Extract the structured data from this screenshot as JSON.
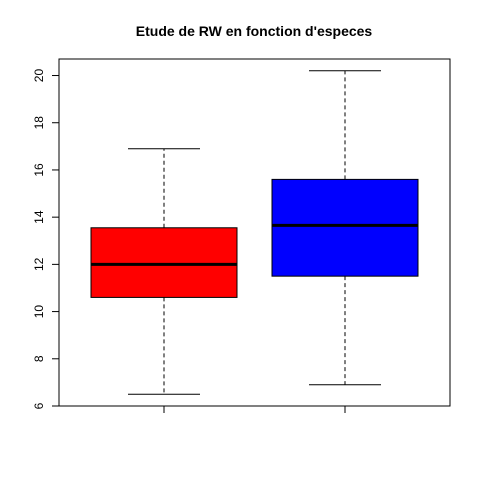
{
  "chart_data": {
    "type": "box",
    "title": "Etude de RW en fonction d'especes",
    "xlabel": "",
    "ylabel": "",
    "ylim": [
      6,
      20.7
    ],
    "y_ticks": [
      6,
      8,
      10,
      12,
      14,
      16,
      18,
      20
    ],
    "y_tick_labels": [
      "6",
      "8",
      "10",
      "12",
      "14",
      "16",
      "18",
      "20"
    ],
    "categories": [
      "",
      ""
    ],
    "boxes": [
      {
        "min": 6.5,
        "q1": 10.6,
        "median": 12.0,
        "q3": 13.55,
        "max": 16.9,
        "color": "#ff0000"
      },
      {
        "min": 6.9,
        "q1": 11.5,
        "median": 13.65,
        "q3": 15.6,
        "max": 20.2,
        "color": "#0000ff"
      }
    ],
    "grid": false,
    "legend": "none"
  }
}
